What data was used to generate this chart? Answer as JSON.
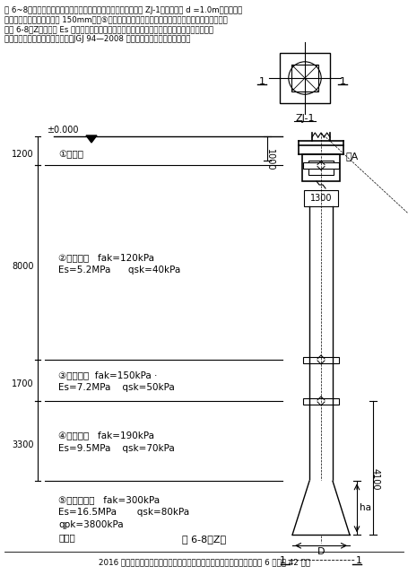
{
  "title_line1": "题 6~8：某多层框架结构，拟采用一柱一桩人工挖孔桩桩基基础 ZJ-1，桩身内径 d =1.0m，护壁采用",
  "title_line2": "振捣密实的混凝土，厚度为 150mm，以⑤层硬塑状黏土为桩端持力层，基础剖面及地基图层相关参数",
  "title_line3": "见图 6-8（Z）（图中 Es 为土的自重压力至土的自重压力与附加压力之和的压力段的压缩模量）",
  "title_line4": "提示：根据《建筑桩基技术规范》JGJ 94—2008 作答；粉质黏土可按黏土考虑。",
  "caption": "图 6-8（Z）",
  "footer": "2016 年度全国一级注册结构工程师执业资格考试专业考试试卷（下午）第 6 页（共 42 页）",
  "layer1_label": "①素填土",
  "layer2_label": "②粉质黏土",
  "layer2_fak": "fak=120kPa",
  "layer2_Es": "Es=5.2MPa",
  "layer2_qsk": "qsk=40kPa",
  "layer3_label": "③粉质黏土",
  "layer3_fak": "fak=150kPa",
  "layer3_Es": "Es=7.2MPa",
  "layer3_qsk": "qsk=50kPa",
  "layer4_label": "④粉质黏土",
  "layer4_fak": "fak=190kPa",
  "layer4_Es": "Es=9.5MPa",
  "layer4_qsk": "qsk=70kPa",
  "layer5_label": "⑤硬塑状黏土",
  "layer5_fak": "fak=300kPa",
  "layer5_Es": "Es=16.5MPa",
  "layer5_qsk": "qsk=80kPa",
  "layer5_qpk": "qpk=3800kPa",
  "layer5_bottom": "未揭穿",
  "dim1": "1200",
  "dim2": "8000",
  "dim3": "1700",
  "dim4": "3300",
  "dim5": "4100",
  "dim_1000": "1000",
  "dim_1300": "1300",
  "label_ZJ1": "ZJ-1",
  "label_pile": "桩A",
  "datum": "±0.000",
  "dim_D": "D",
  "dim_ha": "ha",
  "bg_color": "#ffffff",
  "line_color": "#000000",
  "text_color": "#000000"
}
